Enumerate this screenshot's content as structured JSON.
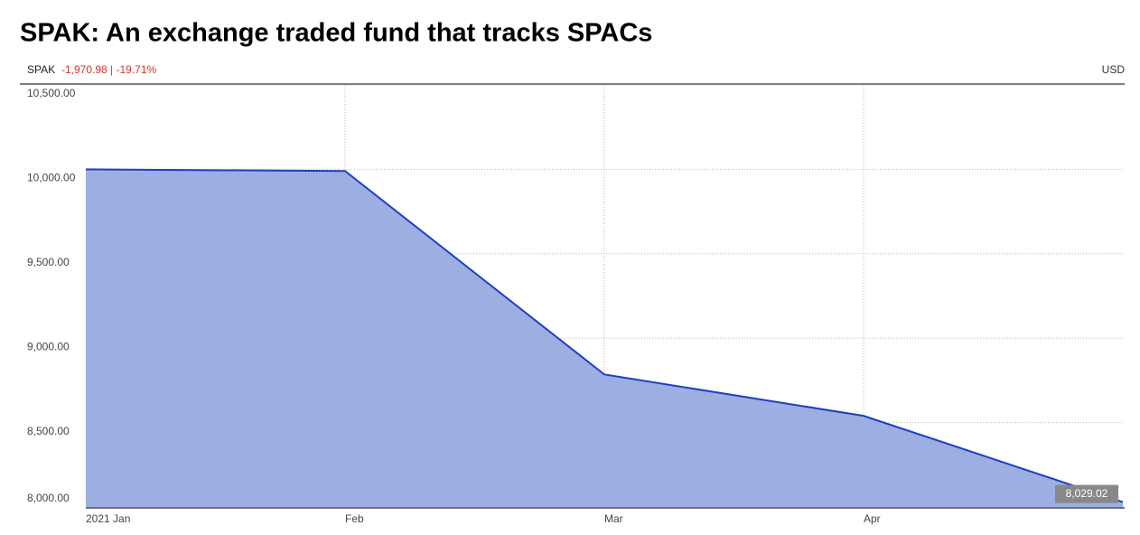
{
  "chart_data": {
    "type": "area",
    "title": "SPAK: An exchange traded fund that tracks SPACs",
    "ticker": "SPAK",
    "change": "-1,970.98 | -19.71%",
    "currency": "USD",
    "categories": [
      "2021 Jan",
      "Feb",
      "Mar",
      "Apr",
      null
    ],
    "values": [
      10000,
      9990,
      8785,
      8540,
      8029.02
    ],
    "value_labels": [
      null,
      null,
      null,
      null,
      "8,029.02"
    ],
    "color": "#1f3fbf",
    "fill": "#9caee2",
    "ylim": [
      8000,
      10500
    ],
    "yticks": [
      {
        "value": 8000,
        "label": "8,000.00"
      },
      {
        "value": 8500,
        "label": "8,500.00"
      },
      {
        "value": 9000,
        "label": "9,000.00"
      },
      {
        "value": 9500,
        "label": "9,500.00"
      },
      {
        "value": 10000,
        "label": "10,000.00"
      },
      {
        "value": 10500,
        "label": "10,500.00"
      }
    ],
    "grid": true
  }
}
